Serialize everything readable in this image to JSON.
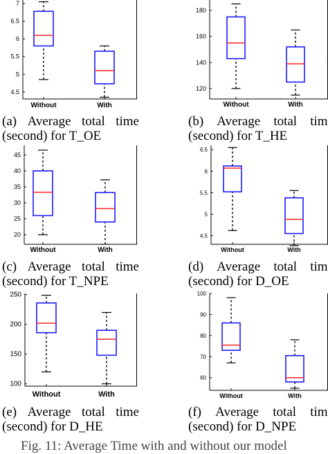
{
  "figure_caption": "Fig. 11: Average Time with and without our model",
  "chart_data": [
    {
      "type": "box",
      "id": "a",
      "caption_line1": [
        "(a)",
        "Average",
        "total",
        "time"
      ],
      "caption_line2": "(second) for T_OE",
      "categories": [
        "Without",
        "With"
      ],
      "ylim": [
        4.3,
        7.1
      ],
      "yticks": [
        4.5,
        5,
        5.5,
        6,
        6.5,
        7
      ],
      "ytick_labels": [
        "4.5",
        "5",
        "5.5",
        "6",
        "6.5",
        "7"
      ],
      "boxes": [
        {
          "min": 4.85,
          "q1": 5.8,
          "median": 6.1,
          "q3": 6.78,
          "max": 7.05
        },
        {
          "min": 4.35,
          "q1": 4.73,
          "median": 5.1,
          "q3": 5.65,
          "max": 5.8
        }
      ]
    },
    {
      "type": "box",
      "id": "b",
      "caption_line1": [
        "(b)",
        "Average",
        "total",
        "time"
      ],
      "caption_line2": "(second) for T_HE",
      "categories": [
        "Without",
        "With"
      ],
      "ylim": [
        112,
        188
      ],
      "yticks": [
        120,
        140,
        160,
        180
      ],
      "ytick_labels": [
        "120",
        "140",
        "160",
        "180"
      ],
      "boxes": [
        {
          "min": 120,
          "q1": 143,
          "median": 155,
          "q3": 175,
          "max": 185
        },
        {
          "min": 115,
          "q1": 125,
          "median": 139,
          "q3": 152,
          "max": 165
        }
      ]
    },
    {
      "type": "box",
      "id": "c",
      "caption_line1": [
        "(c)",
        "Average",
        "total",
        "time"
      ],
      "caption_line2": "(second) for T_NPE",
      "categories": [
        "Without",
        "With"
      ],
      "ylim": [
        17,
        48
      ],
      "yticks": [
        20,
        25,
        30,
        35,
        40,
        45
      ],
      "ytick_labels": [
        "20",
        "25",
        "30",
        "35",
        "40",
        "45"
      ],
      "boxes": [
        {
          "min": 20,
          "q1": 26,
          "median": 33.3,
          "q3": 40,
          "max": 46.5
        },
        {
          "min": 17,
          "q1": 24,
          "median": 28.2,
          "q3": 33.2,
          "max": 37.2
        }
      ]
    },
    {
      "type": "box",
      "id": "d",
      "caption_line1": [
        "(d)",
        "Average",
        "total",
        "time"
      ],
      "caption_line2": "(second) for D_OE",
      "categories": [
        "Without",
        "With"
      ],
      "ylim": [
        4.3,
        6.6
      ],
      "yticks": [
        4.5,
        5,
        5.5,
        6,
        6.5
      ],
      "ytick_labels": [
        "4.5",
        "5",
        "5.5",
        "6",
        "6.5"
      ],
      "boxes": [
        {
          "min": 4.62,
          "q1": 5.52,
          "median": 6.07,
          "q3": 6.12,
          "max": 6.55
        },
        {
          "min": 4.27,
          "q1": 4.55,
          "median": 4.88,
          "q3": 5.38,
          "max": 5.55
        }
      ]
    },
    {
      "type": "box",
      "id": "e",
      "caption_line1": [
        "(e)",
        "Average",
        "total",
        "time"
      ],
      "caption_line2": "(second) for D_HE",
      "categories": [
        "Without",
        "With"
      ],
      "ylim": [
        96,
        252
      ],
      "yticks": [
        100,
        150,
        200,
        250
      ],
      "ytick_labels": [
        "100",
        "150",
        "200",
        "250"
      ],
      "boxes": [
        {
          "min": 120,
          "q1": 186,
          "median": 202,
          "q3": 236,
          "max": 249
        },
        {
          "min": 100,
          "q1": 148,
          "median": 175,
          "q3": 190,
          "max": 220
        }
      ]
    },
    {
      "type": "box",
      "id": "f",
      "caption_line1": [
        "(f)",
        "Average",
        "total",
        "time"
      ],
      "caption_line2": "(second) for D_NPE",
      "categories": [
        "Without",
        "With"
      ],
      "ylim": [
        54,
        100
      ],
      "yticks": [
        60,
        70,
        80,
        90,
        100
      ],
      "ytick_labels": [
        "60",
        "70",
        "80",
        "90",
        "100"
      ],
      "boxes": [
        {
          "min": 67,
          "q1": 73,
          "median": 75.5,
          "q3": 86,
          "max": 98
        },
        {
          "min": 55,
          "q1": 58,
          "median": 60,
          "q3": 70.5,
          "max": 78
        }
      ]
    }
  ]
}
